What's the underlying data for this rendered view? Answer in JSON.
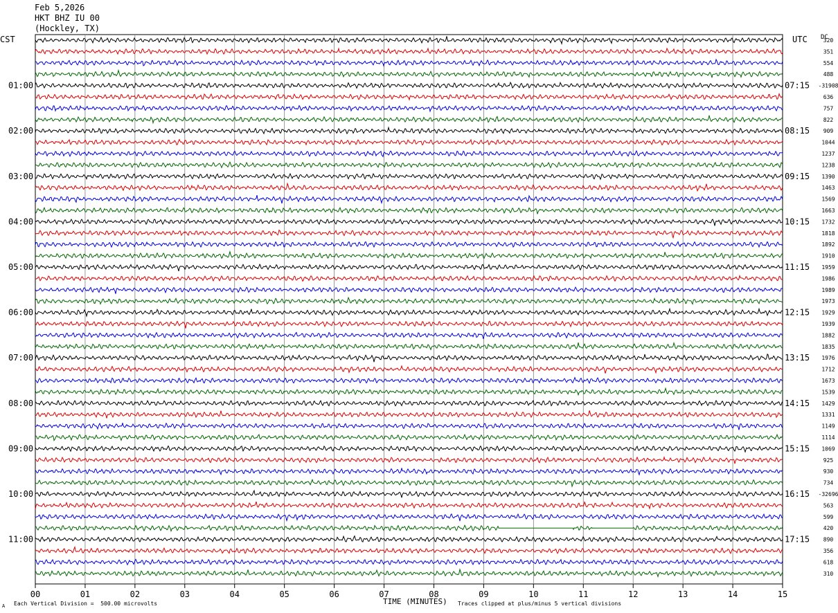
{
  "header": {
    "date": "Feb 5,2026",
    "station": "HKT BHZ IU 00",
    "location": "(Hockley, TX)"
  },
  "left_tz": "CST",
  "right_tz": "UTC",
  "dc_label": "DC",
  "footer": {
    "scale_note": "Each Vertical Division =  500.00 microvolts",
    "clip_note": "Traces clipped at plus/minus 5 vertical divisions",
    "mark": "A"
  },
  "colors": [
    "#000000",
    "#dd0000",
    "#0000dd",
    "#006600"
  ],
  "chart_data": {
    "type": "line",
    "title": "HKT BHZ IU 00 (Hockley, TX)",
    "xlabel": "TIME (MINUTES)",
    "ylabel": "",
    "x_ticks": [
      "00",
      "01",
      "02",
      "03",
      "04",
      "05",
      "06",
      "07",
      "08",
      "09",
      "10",
      "11",
      "12",
      "13",
      "14",
      "15"
    ],
    "xlim": [
      0,
      15
    ],
    "rows_per_hour": 4,
    "row_count": 48,
    "cst_hour_labels": [
      "01:00",
      "02:00",
      "03:00",
      "04:00",
      "05:00",
      "06:00",
      "07:00",
      "08:00",
      "09:00",
      "10:00",
      "11:00"
    ],
    "utc_hour_labels": [
      "07:15",
      "08:15",
      "09:15",
      "10:15",
      "11:15",
      "12:15",
      "13:15",
      "14:15",
      "15:15",
      "16:15",
      "17:15"
    ],
    "dc_offsets": [
      "320",
      "351",
      "554",
      "488",
      "-31908",
      "636",
      "757",
      "822",
      "909",
      "1044",
      "1237",
      "1238",
      "1390",
      "1463",
      "1569",
      "1663",
      "1732",
      "1818",
      "1892",
      "1910",
      "1959",
      "1986",
      "1989",
      "1973",
      "1929",
      "1939",
      "1882",
      "1835",
      "1976",
      "1712",
      "1673",
      "1539",
      "1429",
      "1331",
      "1149",
      "1114",
      "1069",
      "925",
      "930",
      "734",
      "-32696",
      "563",
      "599",
      "420",
      "890",
      "356",
      "618",
      "310"
    ],
    "flat_segments": [
      {
        "row": 43,
        "x_start": 9.3,
        "x_end": 10.8
      },
      {
        "row": 43,
        "x_start": 11.2,
        "x_end": 12.0
      }
    ]
  }
}
